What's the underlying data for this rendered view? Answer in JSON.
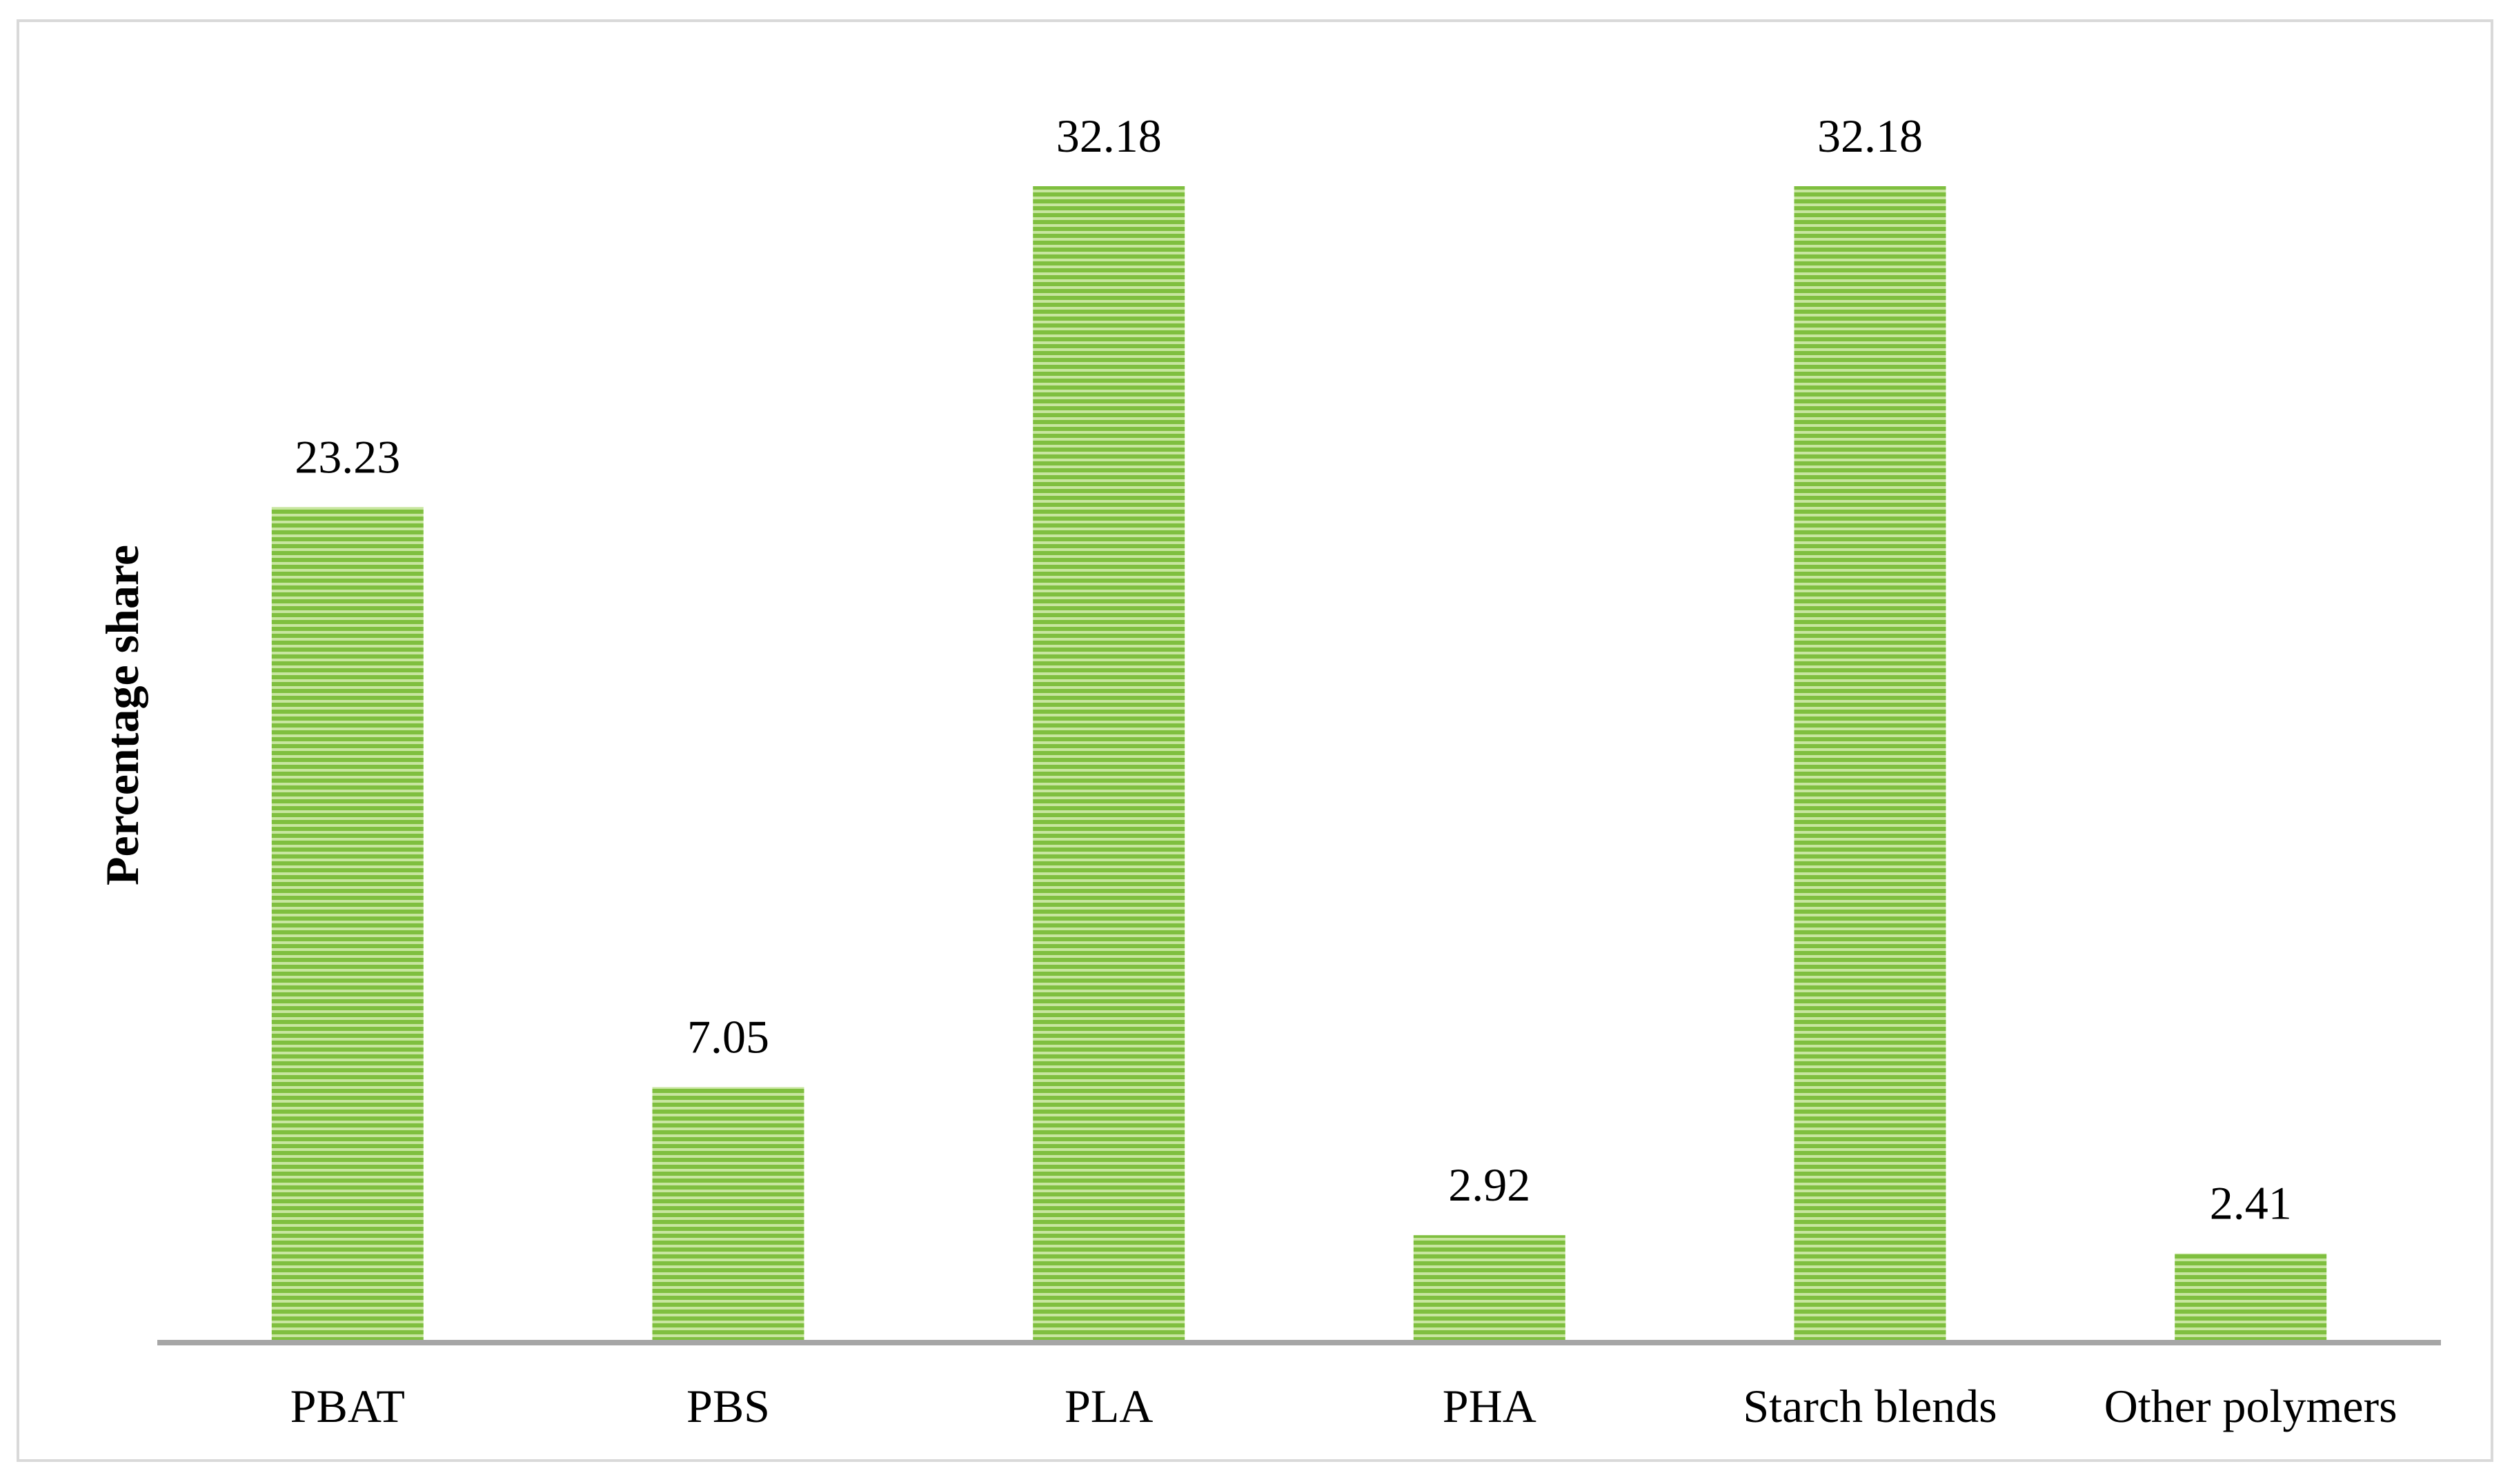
{
  "chart_data": {
    "type": "bar",
    "title": "",
    "xlabel": "",
    "ylabel": "Percentage share",
    "categories": [
      "PBAT",
      "PBS",
      "PLA",
      "PHA",
      "Starch blends",
      "Other polymers"
    ],
    "values": [
      23.23,
      7.05,
      32.18,
      2.92,
      32.18,
      2.41
    ],
    "value_labels": [
      "23.23",
      "7.05",
      "32.18",
      "2.92",
      "32.18",
      "2.41"
    ],
    "ylim": [
      0,
      32.18
    ],
    "grid": false,
    "legend": "none",
    "bar_pattern": "horizontal-stripes",
    "colors": {
      "bar": "#7fbf3f",
      "bar_stripe": "#c8e6a0",
      "axis": "#a6a6a6",
      "frame": "#d9d9d9"
    }
  }
}
